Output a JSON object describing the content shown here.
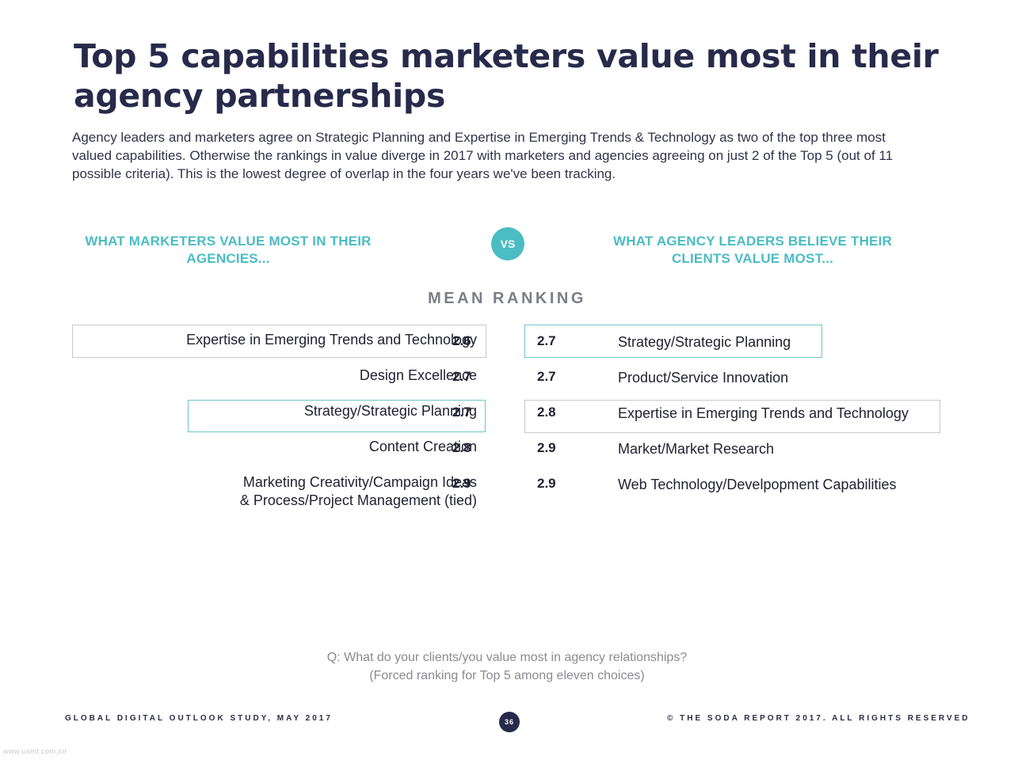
{
  "title": "Top 5 capabilities marketers value most in their agency partnerships",
  "intro": "Agency leaders and marketers agree on Strategic Planning and Expertise in Emerging Trends & Technology as two of the top three most valued capabilities. Otherwise the rankings in value diverge in 2017 with marketers and agencies agreeing on just 2 of the Top 5 (out of 11 possible criteria). This is the lowest degree of overlap in the four years we've been tracking.",
  "left_heading": "WHAT MARKETERS VALUE MOST IN THEIR AGENCIES...",
  "vs_label": "VS",
  "right_heading": "WHAT AGENCY LEADERS BELIEVE THEIR CLIENTS VALUE MOST...",
  "mean_ranking_label": "MEAN RANKING",
  "marketers": [
    {
      "label": "Expertise in Emerging Trends and Technology",
      "score": "2.6"
    },
    {
      "label": "Design Excellence",
      "score": "2.7"
    },
    {
      "label": "Strategy/Strategic Planning",
      "score": "2.7"
    },
    {
      "label": "Content Creation",
      "score": "2.8"
    },
    {
      "label": "Marketing Creativity/Campaign Ideas",
      "label2": "& Process/Project Management (tied)",
      "score": "2.9"
    }
  ],
  "agency_leaders": [
    {
      "label": "Strategy/Strategic Planning",
      "score": "2.7"
    },
    {
      "label": "Product/Service Innovation",
      "score": "2.7"
    },
    {
      "label": "Expertise in Emerging Trends and Technology",
      "score": "2.8"
    },
    {
      "label": "Market/Market Research",
      "score": "2.9"
    },
    {
      "label": "Web Technology/Develpopment Capabilities",
      "score": "2.9"
    }
  ],
  "question_line1": "Q: What do your clients/you value most in agency relationships?",
  "question_line2": "(Forced ranking for Top 5 among eleven choices)",
  "footer_left": "GLOBAL DIGITAL OUTLOOK STUDY, MAY 2017",
  "page_number": "36",
  "footer_right": "© THE SODA REPORT 2017. ALL RIGHTS RESERVED",
  "watermark": "www.useit.com.cn",
  "colors": {
    "accent_teal": "#4bbcc3",
    "title_navy": "#272a4a",
    "highlight_gray": "#c9c9c9",
    "highlight_teal": "#6ec6cb"
  }
}
